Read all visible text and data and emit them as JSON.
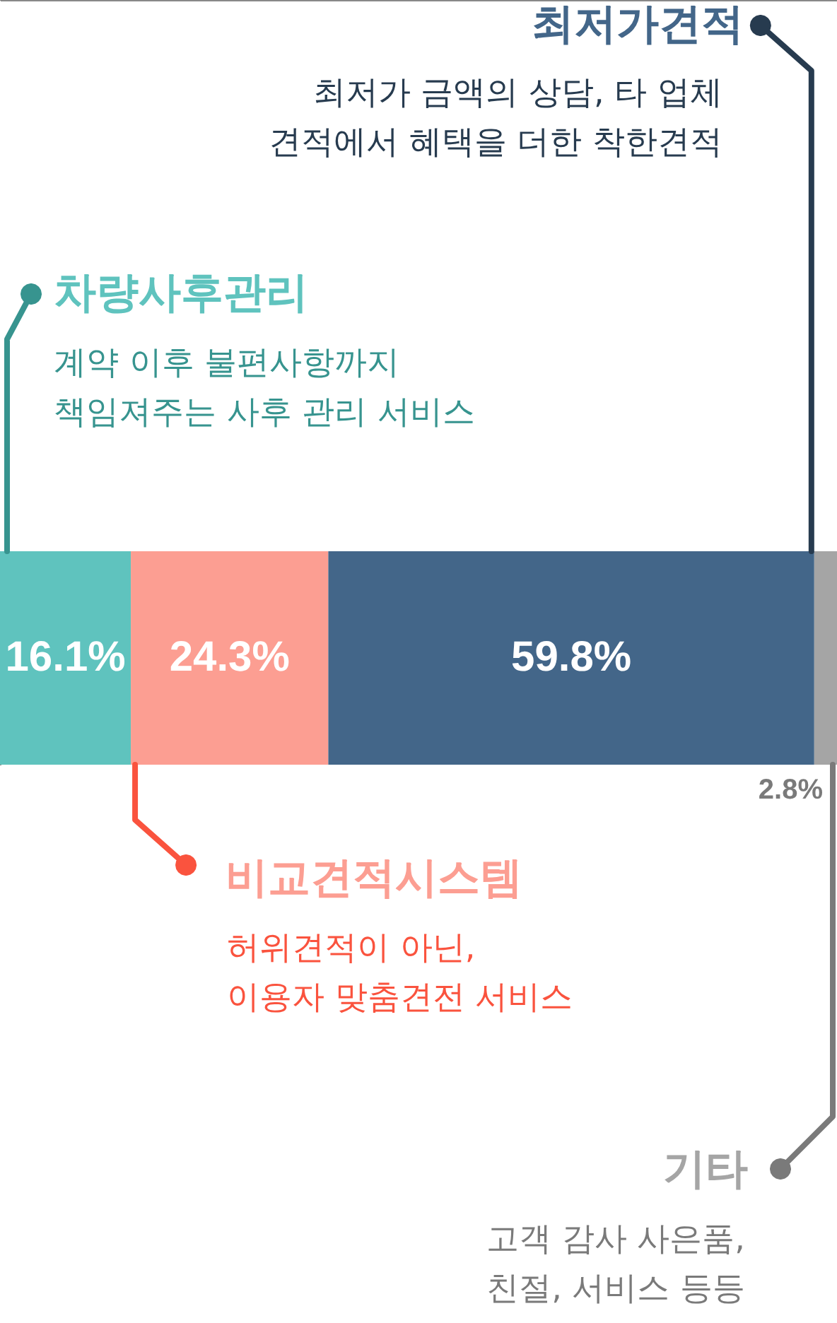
{
  "chart_data": {
    "type": "bar",
    "orientation": "horizontal",
    "stacked": true,
    "categories": [
      null
    ],
    "series": [
      {
        "name": "차량사후관리",
        "color": "#5fc3be",
        "values": [
          16.1
        ],
        "value_labels": [
          "16.1%"
        ]
      },
      {
        "name": "비교견적시스템",
        "color": "#fc9e92",
        "values": [
          24.3
        ],
        "value_labels": [
          "24.3%"
        ]
      },
      {
        "name": "최저가견적",
        "color": "#436689",
        "values": [
          59.8
        ],
        "value_labels": [
          "59.8%"
        ]
      },
      {
        "name": "기타",
        "color": "#a5a5a5",
        "values": [
          2.8
        ],
        "value_labels": [
          "2.8%"
        ]
      }
    ],
    "annotations": [
      "계약 이후 불편사항까지\n책임져주는 사후 관리 서비스",
      "허위견적이 아닌,\n이용자 맞춤견전 서비스",
      "최저가 금액의 상담, 타 업체\n견적에서 혜택을 더한 착한견적",
      "고객 감사 사은품,\n친절, 서비스 등등"
    ]
  }
}
